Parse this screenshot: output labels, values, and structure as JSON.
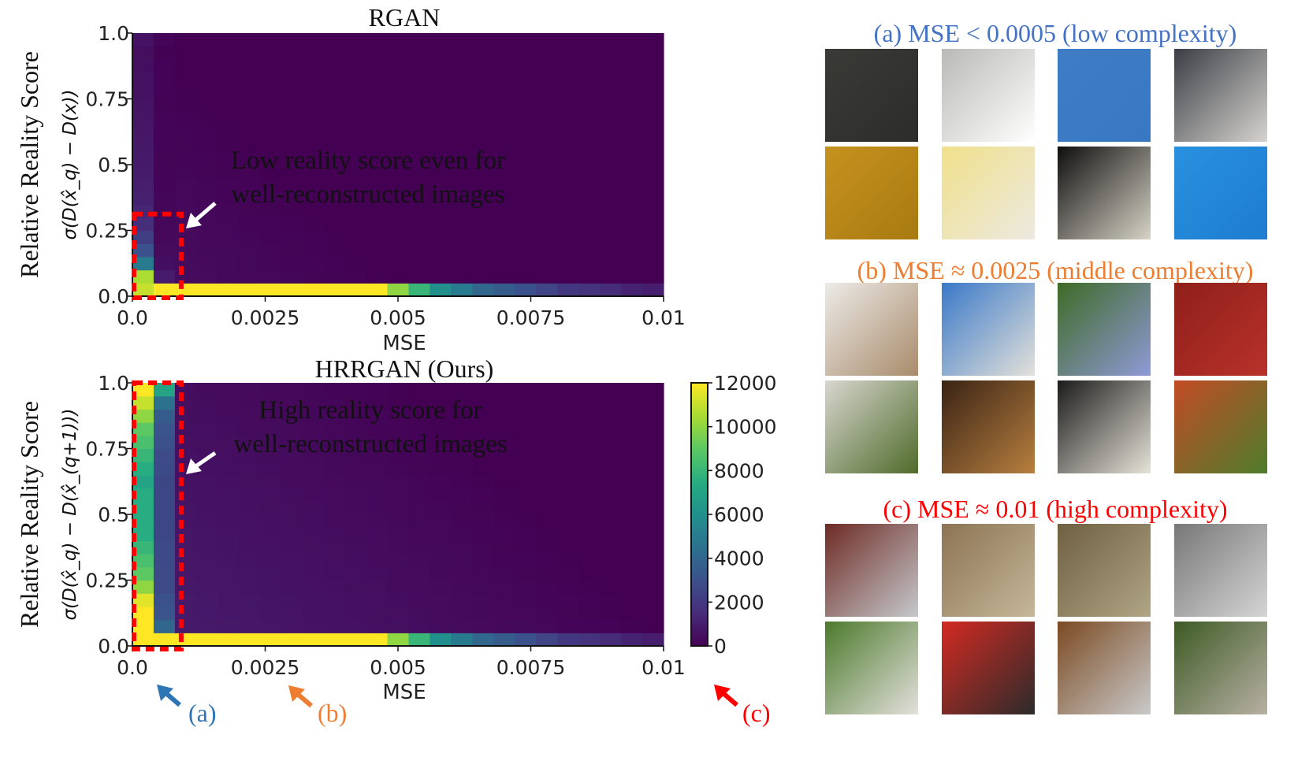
{
  "chart_data": [
    {
      "type": "heatmap",
      "title": "RGAN",
      "xlabel": "MSE",
      "ylabel": "Relative Reality Score",
      "ylabel_formula": "σ(D(x̂_q) − D(x))",
      "xlim": [
        0.0,
        0.01
      ],
      "ylim": [
        0.0,
        1.0
      ],
      "xticks": [
        "0.0",
        "0.0025",
        "0.005",
        "0.0075",
        "0.01"
      ],
      "yticks": [
        "0.0",
        "0.25",
        "0.5",
        "0.75",
        "1.0"
      ],
      "xbins": 25,
      "ybins": 20,
      "bottom_row_counts": [
        11000,
        12000,
        12000,
        12000,
        12000,
        12000,
        12000,
        12000,
        12000,
        12000,
        12000,
        12000,
        10000,
        8000,
        6000,
        5000,
        4000,
        3500,
        3000,
        2500,
        2000,
        1800,
        1500,
        1200,
        1000
      ],
      "col0_counts_by_row": [
        11000,
        10500,
        5000,
        3000,
        2200,
        1600,
        1300,
        1100,
        1000,
        900,
        850,
        800,
        750,
        700,
        650,
        600,
        550,
        500,
        450,
        600
      ],
      "col1_counts_by_row": [
        12000,
        900,
        500,
        350,
        250,
        200,
        180,
        160,
        150,
        140,
        130,
        120,
        110,
        100,
        90,
        80,
        70,
        60,
        50,
        100
      ],
      "annotation": [
        "Low reality score even for",
        "well-reconstructed images"
      ]
    },
    {
      "type": "heatmap",
      "title": "HRRGAN (Ours)",
      "xlabel": "MSE",
      "ylabel": "Relative Reality Score",
      "ylabel_formula": "σ(D(x̂_q) − D(x̂_(q+1)))",
      "xlim": [
        0.0,
        0.01
      ],
      "ylim": [
        0.0,
        1.0
      ],
      "xticks": [
        "0.0",
        "0.0025",
        "0.005",
        "0.0075",
        "0.01"
      ],
      "yticks": [
        "0.0",
        "0.25",
        "0.5",
        "0.75",
        "1.0"
      ],
      "xbins": 25,
      "ybins": 20,
      "bottom_row_counts": [
        12000,
        12000,
        12000,
        12000,
        12000,
        12000,
        12000,
        12000,
        12000,
        12000,
        12000,
        12000,
        10000,
        8000,
        6000,
        5000,
        4000,
        3500,
        3000,
        2500,
        2000,
        1800,
        1500,
        1200,
        1000
      ],
      "col0_counts_by_row": [
        12000,
        12000,
        12000,
        11500,
        10000,
        9000,
        8500,
        8000,
        7500,
        7500,
        7500,
        7500,
        7000,
        7500,
        8000,
        8500,
        9000,
        10000,
        11000,
        12000
      ],
      "col1_counts_by_row": [
        12000,
        4000,
        3200,
        3000,
        2800,
        2800,
        2700,
        2700,
        2600,
        2600,
        2600,
        2600,
        2600,
        2700,
        2800,
        3000,
        3200,
        3500,
        4500,
        7000
      ],
      "annotation": [
        "High reality score for",
        "well-reconstructed images"
      ],
      "colorbar": {
        "ticks": [
          "0",
          "2000",
          "4000",
          "6000",
          "8000",
          "10000",
          "12000"
        ],
        "min": 0,
        "max": 12000,
        "colormap": "viridis"
      },
      "arrow_labels": [
        "(a)",
        "(b)",
        "(c)"
      ]
    }
  ],
  "gallery": {
    "groups": [
      {
        "title": "(a) MSE < 0.0005 (low complexity)",
        "color": "#4472c4",
        "tiles": [
          {
            "colors": [
              "#3a3a37",
              "#2c2c2a"
            ]
          },
          {
            "colors": [
              "#b9b9b6",
              "#ffffff"
            ]
          },
          {
            "colors": [
              "#3f7cc6",
              "#3878c2"
            ]
          },
          {
            "colors": [
              "#3a3e44",
              "#d6d3cf"
            ]
          },
          {
            "colors": [
              "#c6921f",
              "#a87a10"
            ]
          },
          {
            "colors": [
              "#f0e08a",
              "#ece9e1"
            ]
          },
          {
            "colors": [
              "#0e0e0e",
              "#d7d3c6"
            ]
          },
          {
            "colors": [
              "#2a90e0",
              "#1d7dcf"
            ]
          }
        ]
      },
      {
        "title": "(b) MSE ≈ 0.0025 (middle complexity)",
        "color": "#ed7d31",
        "tiles": [
          {
            "colors": [
              "#ecebe7",
              "#a98b6b"
            ]
          },
          {
            "colors": [
              "#3a79c8",
              "#e3e1da"
            ]
          },
          {
            "colors": [
              "#3e6a26",
              "#8f9ad6"
            ]
          },
          {
            "colors": [
              "#8f1f1a",
              "#b8322a"
            ]
          },
          {
            "colors": [
              "#d8d6cf",
              "#4f6b2a"
            ]
          },
          {
            "colors": [
              "#3a2414",
              "#b77f3f"
            ]
          },
          {
            "colors": [
              "#1b1b1b",
              "#e6e3d8"
            ]
          },
          {
            "colors": [
              "#c24a25",
              "#4f7d2c"
            ]
          }
        ]
      },
      {
        "title": "(c) MSE ≈ 0.01 (high complexity)",
        "color": "#ff0000",
        "tiles": [
          {
            "colors": [
              "#6e2b24",
              "#c5c8cc"
            ]
          },
          {
            "colors": [
              "#8b7453",
              "#c6b79a"
            ]
          },
          {
            "colors": [
              "#6e6040",
              "#b0a585"
            ]
          },
          {
            "colors": [
              "#777777",
              "#d5d5d5"
            ]
          },
          {
            "colors": [
              "#4c7a2c",
              "#e3e0dc"
            ]
          },
          {
            "colors": [
              "#d32a22",
              "#2b2b2b"
            ]
          },
          {
            "colors": [
              "#7b4a22",
              "#c9c9c9"
            ]
          },
          {
            "colors": [
              "#3d5a24",
              "#b7b0a3"
            ]
          }
        ]
      }
    ]
  },
  "colors": {
    "arrow_a": "#2e75b6",
    "arrow_b": "#ed7d31",
    "arrow_c": "#ff0000",
    "highlight": "#ff0000"
  }
}
